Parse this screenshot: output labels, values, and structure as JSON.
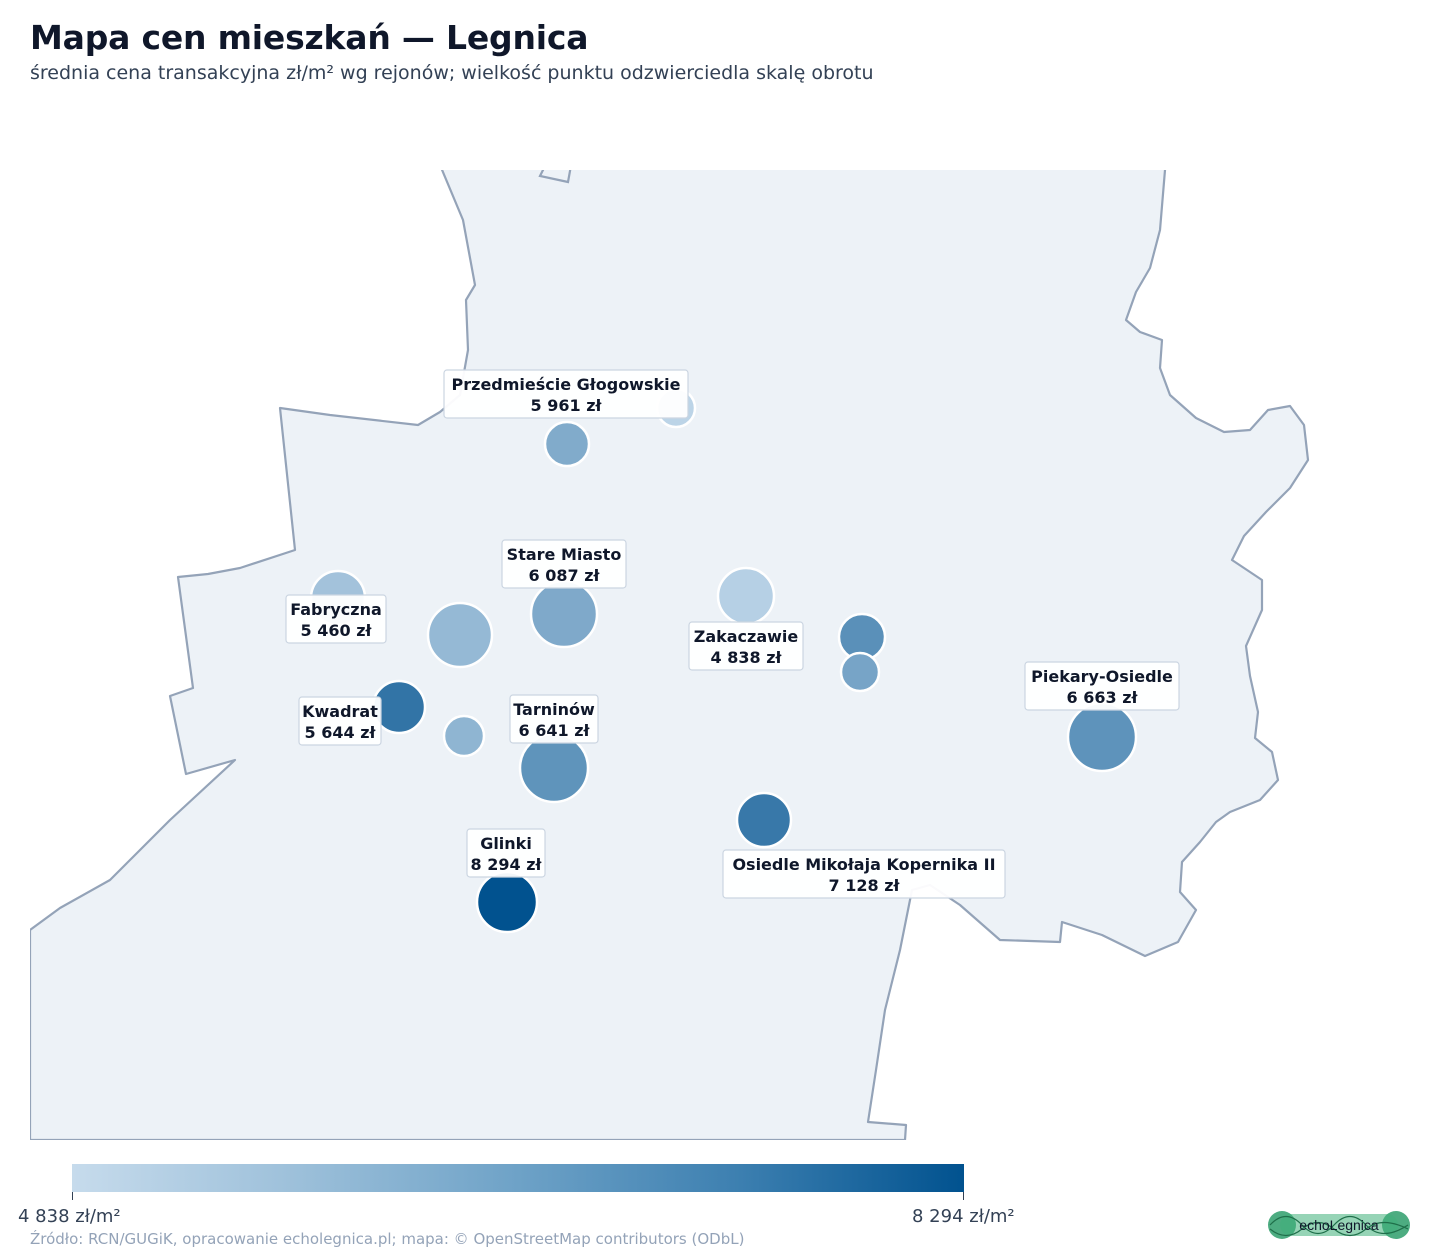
{
  "header": {
    "title": "Mapa cen mieszkań — Legnica",
    "subtitle": "średnia cena transakcyjna zł/m² wg rejonów; wielkość punktu odzwierciedla skalę obrotu"
  },
  "chart_data": {
    "type": "map",
    "title": "Mapa cen mieszkań — Legnica",
    "subtitle": "średnia cena transakcyjna zł/m² wg rejonów; wielkość punktu odzwierciedla skalę obrotu",
    "color_scale": {
      "min": 4838,
      "max": 8294,
      "min_label": "4 838 zł/m²",
      "max_label": "8 294 zł/m²",
      "colors": [
        "#c6dbec",
        "#01528f"
      ]
    },
    "labeled_points": [
      {
        "name": "Przedmieście Głogowskie",
        "value": 5961,
        "value_label": "5 961 zł"
      },
      {
        "name": "Stare Miasto",
        "value": 6087,
        "value_label": "6 087 zł"
      },
      {
        "name": "Fabryczna",
        "value": 5460,
        "value_label": "5 460 zł"
      },
      {
        "name": "Zakaczawie",
        "value": 4838,
        "value_label": "4 838 zł"
      },
      {
        "name": "Kwadrat",
        "value": 5644,
        "value_label": "5 644 zł"
      },
      {
        "name": "Tarninów",
        "value": 6641,
        "value_label": "6 641 zł"
      },
      {
        "name": "Piekary-Osiedle",
        "value": 6663,
        "value_label": "6 663 zł"
      },
      {
        "name": "Glinki",
        "value": 8294,
        "value_label": "8 294 zł"
      },
      {
        "name": "Osiedle Mikołaja Kopernika II",
        "value": 7128,
        "value_label": "7 128 zł"
      }
    ]
  },
  "footer": {
    "source": "Źródło: RCN/GUGiK, opracowanie echolegnica.pl; mapa: © OpenStreetMap contributors (ODbL)",
    "logo_text": "echoLegnica"
  }
}
